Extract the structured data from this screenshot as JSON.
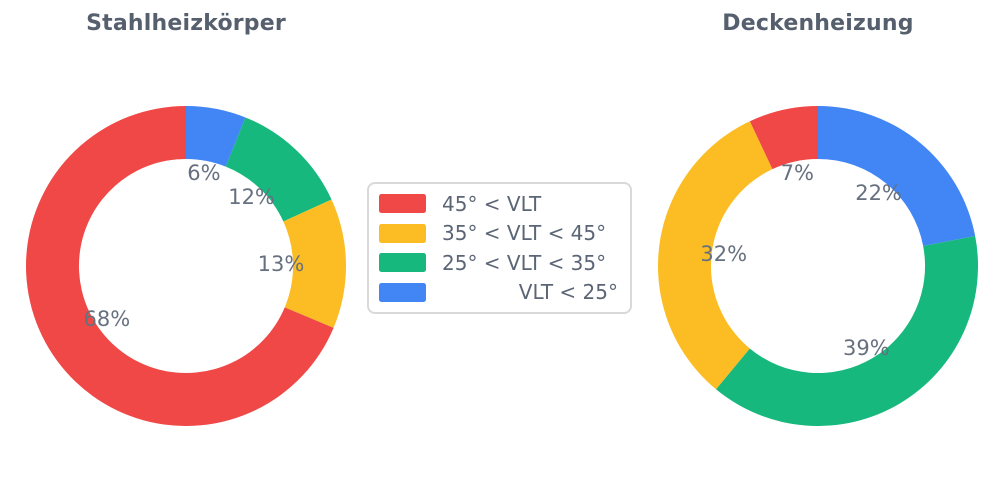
{
  "page": {
    "background_color": "#ffffff",
    "title_text_color": "#565f6d",
    "label_text_color": "#66707f"
  },
  "colors": {
    "red": "#ef4846",
    "yellow": "#fbbd23",
    "green": "#16b87e",
    "blue": "#4285f4",
    "legend_border": "#d9d9d9"
  },
  "legend": {
    "entries": [
      {
        "label": "45° < VLT",
        "color": "#ef4846",
        "color_name": "red"
      },
      {
        "label": "35° < VLT < 45°",
        "color": "#fbbd23",
        "color_name": "yellow"
      },
      {
        "label": "25° < VLT < 35°",
        "color": "#16b87e",
        "color_name": "green"
      },
      {
        "label": "VLT < 25°",
        "color": "#4285f4",
        "color_name": "blue"
      }
    ]
  },
  "chart_data": [
    {
      "type": "pie",
      "title": "Stahlheizkörper",
      "hole_ratio": 0.669,
      "start_angle": "top",
      "direction_in_series_order": "counterclockwise",
      "categories": [
        "45° < VLT",
        "35° < VLT < 45°",
        "25° < VLT < 35°",
        "VLT < 25°"
      ],
      "values": [
        68,
        13,
        12,
        6
      ],
      "value_labels": [
        "68%",
        "13%",
        "12%",
        "6%"
      ],
      "colors": [
        "#ef4846",
        "#fbbd23",
        "#16b87e",
        "#4285f4"
      ]
    },
    {
      "type": "pie",
      "title": "Deckenheizung",
      "hole_ratio": 0.669,
      "start_angle": "top",
      "direction_in_series_order": "counterclockwise",
      "categories": [
        "45° < VLT",
        "35° < VLT < 45°",
        "25° < VLT < 35°",
        "VLT < 25°"
      ],
      "values": [
        7,
        32,
        39,
        22
      ],
      "value_labels": [
        "7%",
        "32%",
        "39%",
        "22%"
      ],
      "colors": [
        "#ef4846",
        "#fbbd23",
        "#16b87e",
        "#4285f4"
      ]
    }
  ]
}
